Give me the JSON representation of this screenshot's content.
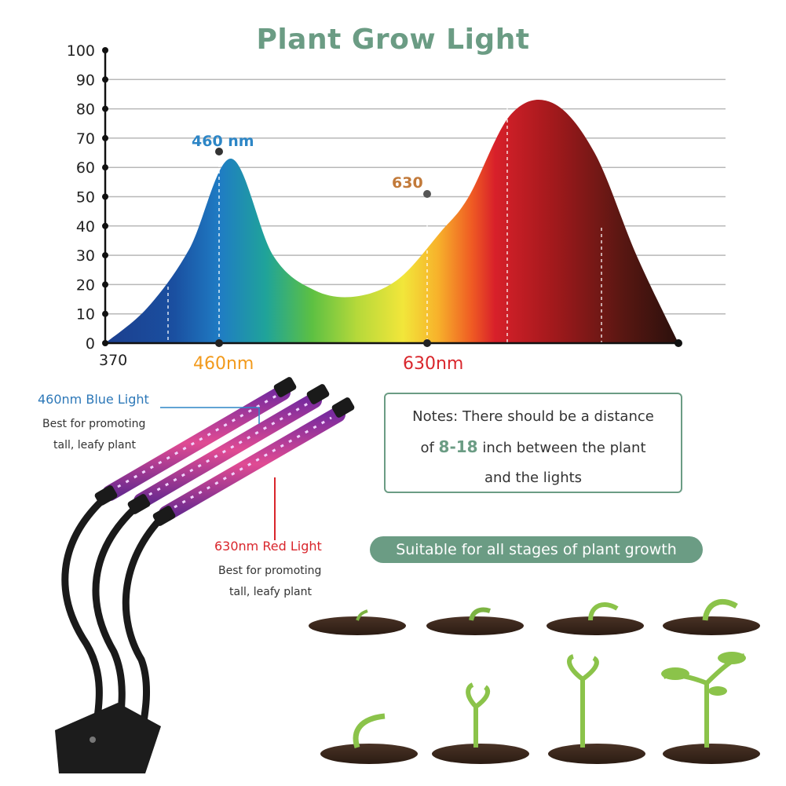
{
  "title": "Plant Grow Light",
  "chart_data": {
    "type": "area",
    "yticks": [
      "0",
      "10",
      "20",
      "30",
      "40",
      "50",
      "60",
      "70",
      "80",
      "90",
      "100"
    ],
    "ylim": [
      0,
      100
    ],
    "x_start_label": "370",
    "categories": [
      "460nm",
      "630nm"
    ],
    "peaks": [
      {
        "label": "460 nm",
        "x": 460,
        "y": 63
      },
      {
        "label": "630",
        "x": 630,
        "y": 50
      }
    ],
    "curve": {
      "x": [
        370,
        400,
        430,
        460,
        490,
        520,
        550,
        580,
        610,
        630,
        660,
        690,
        720,
        750,
        780
      ],
      "y": [
        0,
        12,
        32,
        63,
        30,
        18,
        16,
        22,
        38,
        50,
        78,
        82,
        65,
        30,
        0
      ]
    },
    "grid": true
  },
  "labels": {
    "blue_title": "460nm Blue Light",
    "blue_desc1": "Best for promoting",
    "blue_desc2": "tall, leafy plant",
    "red_title": "630nm Red Light",
    "red_desc1": "Best for promoting",
    "red_desc2": "tall, leafy plant"
  },
  "note": {
    "line1": "Notes: There should be a distance",
    "line2_pre": "of ",
    "line2_hl": "8-18",
    "line2_post": " inch between the plant",
    "line3": "and the lights"
  },
  "banner": "Suitable for all stages of plant growth",
  "colors": {
    "accent": "#6b9c84",
    "blue": "#2d86c6",
    "red": "#d9262c"
  }
}
